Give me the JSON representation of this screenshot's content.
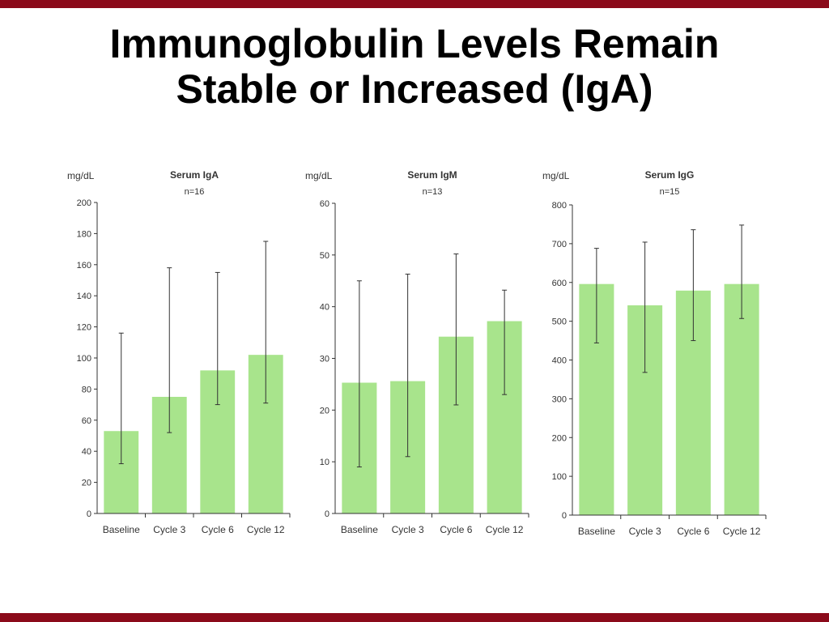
{
  "slide": {
    "title_line1": "Immunoglobulin Levels Remain",
    "title_line2": "Stable or Increased (IgA)",
    "colors": {
      "accent": "#8b0a1a",
      "bar": "#a8e48c",
      "axis": "#333333"
    }
  },
  "chart_data": [
    {
      "type": "bar",
      "title": "Serum IgA",
      "subtitle": "n=16",
      "ylabel": "mg/dL",
      "xlabel": "",
      "categories": [
        "Baseline",
        "Cycle 3",
        "Cycle 6",
        "Cycle 12"
      ],
      "values": [
        53,
        75,
        92,
        102
      ],
      "error_low": [
        32,
        52,
        70,
        71
      ],
      "error_high": [
        116,
        158,
        155,
        175
      ],
      "ylim": [
        0,
        200
      ],
      "yticks": [
        0,
        20,
        40,
        60,
        80,
        100,
        120,
        140,
        160,
        180,
        200
      ],
      "grid": false
    },
    {
      "type": "bar",
      "title": "Serum IgM",
      "subtitle": "n=13",
      "ylabel": "mg/dL",
      "xlabel": "",
      "categories": [
        "Baseline",
        "Cycle 3",
        "Cycle 6",
        "Cycle 12"
      ],
      "values": [
        25.3,
        25.6,
        34.2,
        37.2
      ],
      "error_low": [
        9,
        11,
        21,
        23
      ],
      "error_high": [
        45,
        46.3,
        50.2,
        43.2
      ],
      "ylim": [
        0,
        60
      ],
      "yticks": [
        0,
        10,
        20,
        30,
        40,
        50,
        60
      ],
      "grid": false
    },
    {
      "type": "bar",
      "title": "Serum IgG",
      "subtitle": "n=15",
      "ylabel": "mg/dL",
      "xlabel": "",
      "categories": [
        "Baseline",
        "Cycle 3",
        "Cycle 6",
        "Cycle 12"
      ],
      "values": [
        596,
        541,
        579,
        596
      ],
      "error_low": [
        444,
        368,
        450,
        507
      ],
      "error_high": [
        688,
        704,
        736,
        748
      ],
      "ylim": [
        0,
        800
      ],
      "yticks": [
        0,
        100,
        200,
        300,
        400,
        500,
        600,
        700,
        800
      ],
      "grid": false
    }
  ]
}
